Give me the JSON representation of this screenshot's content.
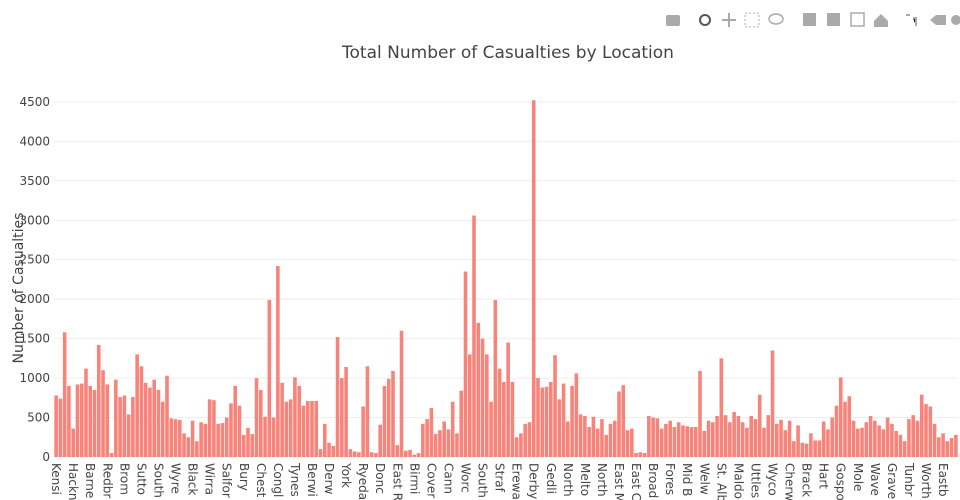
{
  "chart_data": {
    "type": "bar",
    "title": "Total Number of Casualties by Location",
    "y_label": "Number of Casualties",
    "color": "#f8837a",
    "categories": [
      "Kensi",
      null,
      null,
      null,
      "Hackn",
      null,
      null,
      null,
      "Barne",
      null,
      null,
      null,
      "Redbr",
      null,
      null,
      null,
      "Brom",
      null,
      null,
      null,
      "Sutto",
      null,
      null,
      null,
      "South",
      null,
      null,
      null,
      "Wyre",
      null,
      null,
      null,
      "Black",
      null,
      null,
      null,
      "Wirra",
      null,
      null,
      null,
      "Salfor",
      null,
      null,
      null,
      "Bury",
      null,
      null,
      null,
      "Chest",
      null,
      null,
      null,
      "Congl",
      null,
      null,
      null,
      "Tynes",
      null,
      null,
      null,
      "Berwi",
      null,
      null,
      null,
      "Derw",
      null,
      null,
      null,
      "York",
      null,
      null,
      null,
      "Ryeda",
      null,
      null,
      null,
      "Donc",
      null,
      null,
      null,
      "East R",
      null,
      null,
      null,
      "Birmi",
      null,
      null,
      null,
      "Cover",
      null,
      null,
      null,
      "Cann",
      null,
      null,
      null,
      "Worc",
      null,
      null,
      null,
      "South",
      null,
      null,
      null,
      "Straf",
      null,
      null,
      null,
      "Erewa",
      null,
      null,
      null,
      "Derby",
      null,
      null,
      null,
      "Gedli",
      null,
      null,
      null,
      "North",
      null,
      null,
      null,
      "Melto",
      null,
      null,
      null,
      "North",
      null,
      null,
      null,
      "East M",
      null,
      null,
      null,
      "East C",
      null,
      null,
      null,
      "Broad",
      null,
      null,
      null,
      "Fores",
      null,
      null,
      null,
      "Mid B",
      null,
      null,
      null,
      "Welw",
      null,
      null,
      null,
      "St. Alb",
      null,
      null,
      null,
      "Maldo",
      null,
      null,
      null,
      "Uttles",
      null,
      null,
      null,
      "Wyco",
      null,
      null,
      null,
      "Cherw",
      null,
      null,
      null,
      "Brack",
      null,
      null,
      null,
      "Hart",
      null,
      null,
      null,
      "Gospo",
      null,
      null,
      null,
      "Mole",
      null,
      null,
      null,
      "Wave",
      null,
      null,
      null,
      "Grave",
      null,
      null,
      null,
      "Tunbr",
      null,
      null,
      null,
      "Worth",
      null,
      null,
      null,
      "Eastb",
      null,
      null,
      null
    ],
    "values": [
      780,
      740,
      1580,
      900,
      360,
      920,
      930,
      1120,
      900,
      850,
      1420,
      1100,
      920,
      50,
      980,
      760,
      780,
      540,
      760,
      1300,
      1150,
      940,
      880,
      980,
      850,
      700,
      1030,
      490,
      480,
      470,
      300,
      250,
      460,
      200,
      440,
      420,
      730,
      720,
      420,
      430,
      500,
      680,
      900,
      650,
      280,
      370,
      290,
      1000,
      850,
      510,
      1990,
      500,
      2420,
      940,
      700,
      730,
      1010,
      900,
      650,
      710,
      710,
      710,
      100,
      420,
      180,
      140,
      1520,
      1000,
      1140,
      100,
      70,
      60,
      640,
      1150,
      60,
      50,
      410,
      900,
      990,
      1090,
      150,
      1600,
      80,
      90,
      30,
      50,
      420,
      480,
      620,
      290,
      340,
      450,
      350,
      700,
      300,
      840,
      2350,
      1300,
      3060,
      1700,
      1500,
      1300,
      700,
      1990,
      1120,
      950,
      1450,
      950,
      250,
      300,
      420,
      440,
      4520,
      1000,
      880,
      890,
      950,
      1290,
      730,
      930,
      450,
      900,
      1060,
      540,
      520,
      380,
      510,
      360,
      480,
      280,
      420,
      460,
      830,
      910,
      340,
      360,
      50,
      60,
      50,
      520,
      500,
      490,
      360,
      420,
      460,
      380,
      440,
      400,
      390,
      380,
      380,
      1090,
      330,
      460,
      440,
      520,
      1250,
      530,
      440,
      570,
      520,
      440,
      370,
      520,
      480,
      790,
      370,
      530,
      1350,
      420,
      470,
      340,
      460,
      200,
      400,
      180,
      170,
      300,
      210,
      210,
      450,
      350,
      500,
      650,
      1010,
      700,
      770,
      460,
      360,
      370,
      440,
      520,
      460,
      400,
      350,
      500,
      420,
      330,
      280,
      200,
      480,
      530,
      460,
      790,
      670,
      640,
      420,
      250,
      300,
      200,
      240,
      280
    ],
    "ylim": [
      0,
      4600
    ],
    "yticks": [
      0,
      500,
      1000,
      1500,
      2000,
      2500,
      3000,
      3500,
      4000,
      4500
    ],
    "grid": true
  }
}
